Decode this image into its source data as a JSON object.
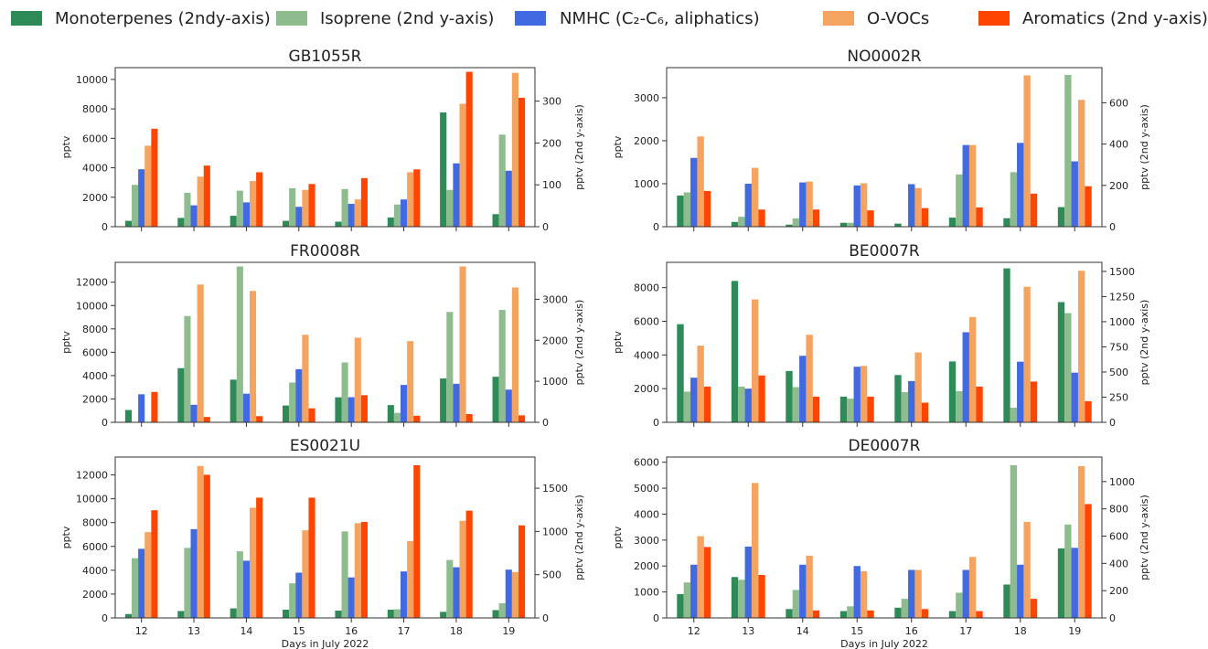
{
  "legend": {
    "placement": "top",
    "items": [
      {
        "label": "Monoterpenes (2ndy-axis)",
        "color": "#2e8b57"
      },
      {
        "label": "Isoprene (2nd y-axis)",
        "color": "#8fbc8f"
      },
      {
        "label": "NMHC (C₂-C₆, aliphatics)",
        "color": "#4169e1"
      },
      {
        "label": "O-VOCs",
        "color": "#f4a460"
      },
      {
        "label": "Aromatics (2nd y-axis)",
        "color": "#ff4500"
      }
    ]
  },
  "chart_data": [
    {
      "type": "bar",
      "title": "GB1055R",
      "categories": [
        "12",
        "13",
        "14",
        "15",
        "16",
        "17",
        "18",
        "19"
      ],
      "xlabel": "",
      "ylabel": "pptv",
      "y2label": "pptv (2nd y-axis)",
      "ylim": [
        0,
        10800
      ],
      "y2lim": [
        0,
        380
      ],
      "yticks": [
        0,
        2000,
        4000,
        6000,
        8000,
        10000
      ],
      "y2ticks": [
        0,
        100,
        200,
        300
      ],
      "show_xticklabels": false,
      "series": [
        {
          "name": "Monoterpenes (2ndy-axis)",
          "axis": "y2",
          "values": [
            14,
            21,
            26,
            14,
            12,
            22,
            273,
            30
          ]
        },
        {
          "name": "Isoprene (2nd y-axis)",
          "axis": "y2",
          "values": [
            100,
            81,
            86,
            92,
            90,
            53,
            88,
            220
          ]
        },
        {
          "name": "NMHC (C₂-C₆, aliphatics)",
          "axis": "y",
          "values": [
            3900,
            1450,
            1650,
            1350,
            1550,
            1850,
            4300,
            3800
          ]
        },
        {
          "name": "O-VOCs",
          "axis": "y",
          "values": [
            5500,
            3400,
            3100,
            2500,
            1850,
            3700,
            8350,
            10450
          ]
        },
        {
          "name": "Aromatics (2nd y-axis)",
          "axis": "y2",
          "values": [
            234,
            146,
            130,
            102,
            116,
            137,
            370,
            308
          ]
        }
      ]
    },
    {
      "type": "bar",
      "title": "NO0002R",
      "categories": [
        "12",
        "13",
        "14",
        "15",
        "16",
        "17",
        "18",
        "19"
      ],
      "xlabel": "",
      "ylabel": "pptv",
      "y2label": "pptv (2nd y-axis)",
      "ylim": [
        0,
        3700
      ],
      "y2lim": [
        0,
        770
      ],
      "yticks": [
        0,
        1000,
        2000,
        3000
      ],
      "y2ticks": [
        0,
        200,
        400,
        600
      ],
      "show_xticklabels": false,
      "series": [
        {
          "name": "Monoterpenes (2ndy-axis)",
          "axis": "y2",
          "values": [
            151,
            23,
            10,
            19,
            15,
            44,
            41,
            95
          ]
        },
        {
          "name": "Isoprene (2nd y-axis)",
          "axis": "y2",
          "values": [
            166,
            48,
            40,
            19,
            0,
            253,
            264,
            735
          ]
        },
        {
          "name": "NMHC (C₂-C₆, aliphatics)",
          "axis": "y",
          "values": [
            1600,
            1000,
            1030,
            960,
            990,
            1900,
            1950,
            1520
          ]
        },
        {
          "name": "O-VOCs",
          "axis": "y",
          "values": [
            2100,
            1370,
            1050,
            1010,
            900,
            1900,
            3520,
            2950
          ]
        },
        {
          "name": "Aromatics (2nd y-axis)",
          "axis": "y2",
          "values": [
            173,
            83,
            83,
            79,
            90,
            93,
            160,
            196
          ]
        }
      ]
    },
    {
      "type": "bar",
      "title": "FR0008R",
      "categories": [
        "12",
        "13",
        "14",
        "15",
        "16",
        "17",
        "18",
        "19"
      ],
      "xlabel": "",
      "ylabel": "pptv",
      "y2label": "pptv (2nd y-axis)",
      "ylim": [
        0,
        13700
      ],
      "y2lim": [
        0,
        3900
      ],
      "yticks": [
        0,
        2000,
        4000,
        6000,
        8000,
        10000,
        12000
      ],
      "y2ticks": [
        0,
        1000,
        2000,
        3000
      ],
      "show_xticklabels": false,
      "series": [
        {
          "name": "Monoterpenes (2ndy-axis)",
          "axis": "y2",
          "values": [
            300,
            1320,
            1040,
            410,
            610,
            420,
            1070,
            1110
          ]
        },
        {
          "name": "Isoprene (2nd y-axis)",
          "axis": "y2",
          "values": [
            0,
            2590,
            3800,
            970,
            1460,
            230,
            2690,
            2740
          ]
        },
        {
          "name": "NMHC (C₂-C₆, aliphatics)",
          "axis": "y",
          "values": [
            2400,
            1500,
            2450,
            4550,
            2150,
            3200,
            3300,
            2800
          ]
        },
        {
          "name": "O-VOCs",
          "axis": "y",
          "values": [
            0,
            11800,
            11250,
            7500,
            7250,
            6950,
            13350,
            11550
          ]
        },
        {
          "name": "Aromatics (2nd y-axis)",
          "axis": "y2",
          "values": [
            740,
            130,
            150,
            340,
            660,
            160,
            200,
            170
          ]
        }
      ]
    },
    {
      "type": "bar",
      "title": "BE0007R",
      "categories": [
        "12",
        "13",
        "14",
        "15",
        "16",
        "17",
        "18",
        "19"
      ],
      "xlabel": "",
      "ylabel": "pptv",
      "y2label": "pptv (2nd y-axis)",
      "ylim": [
        0,
        9500
      ],
      "y2lim": [
        0,
        1590
      ],
      "yticks": [
        0,
        2000,
        4000,
        6000,
        8000
      ],
      "y2ticks": [
        0,
        250,
        500,
        750,
        1000,
        1250,
        1500
      ],
      "show_xticklabels": false,
      "series": [
        {
          "name": "Monoterpenes (2ndy-axis)",
          "axis": "y2",
          "values": [
            975,
            1405,
            510,
            255,
            470,
            605,
            1530,
            1195
          ]
        },
        {
          "name": "Isoprene (2nd y-axis)",
          "axis": "y2",
          "values": [
            305,
            355,
            350,
            235,
            300,
            310,
            145,
            1085
          ]
        },
        {
          "name": "NMHC (C₂-C₆, aliphatics)",
          "axis": "y",
          "values": [
            2650,
            2000,
            3950,
            3300,
            2450,
            5350,
            3600,
            2950
          ]
        },
        {
          "name": "O-VOCs",
          "axis": "y",
          "values": [
            4550,
            7300,
            5200,
            3350,
            4150,
            6250,
            8050,
            9000
          ]
        },
        {
          "name": "Aromatics (2nd y-axis)",
          "axis": "y2",
          "values": [
            355,
            465,
            255,
            255,
            195,
            355,
            405,
            210
          ]
        }
      ]
    },
    {
      "type": "bar",
      "title": "ES0021U",
      "categories": [
        "12",
        "13",
        "14",
        "15",
        "16",
        "17",
        "18",
        "19"
      ],
      "xlabel": "Days in July 2022",
      "ylabel": "pptv",
      "y2label": "pptv (2nd y-axis)",
      "ylim": [
        0,
        13500
      ],
      "y2lim": [
        0,
        1860
      ],
      "yticks": [
        0,
        2000,
        4000,
        6000,
        8000,
        10000,
        12000
      ],
      "y2ticks": [
        0,
        500,
        1000,
        1500
      ],
      "show_xticklabels": true,
      "series": [
        {
          "name": "Monoterpenes (2ndy-axis)",
          "axis": "y2",
          "values": [
            45,
            80,
            110,
            95,
            85,
            95,
            70,
            90
          ]
        },
        {
          "name": "Isoprene (2nd y-axis)",
          "axis": "y2",
          "values": [
            690,
            810,
            770,
            400,
            1000,
            100,
            670,
            170
          ]
        },
        {
          "name": "NMHC (C₂-C₆, aliphatics)",
          "axis": "y",
          "values": [
            5800,
            7450,
            4800,
            3800,
            3400,
            3900,
            4250,
            4050
          ]
        },
        {
          "name": "O-VOCs",
          "axis": "y",
          "values": [
            7200,
            12750,
            9250,
            7350,
            7950,
            6450,
            8150,
            3850
          ]
        },
        {
          "name": "Aromatics (2nd y-axis)",
          "axis": "y2",
          "values": [
            1245,
            1655,
            1390,
            1390,
            1110,
            1765,
            1240,
            1070
          ]
        }
      ]
    },
    {
      "type": "bar",
      "title": "DE0007R",
      "categories": [
        "12",
        "13",
        "14",
        "15",
        "16",
        "17",
        "18",
        "19"
      ],
      "xlabel": "Days in July 2022",
      "ylabel": "pptv",
      "y2label": "pptv (2nd y-axis)",
      "ylim": [
        0,
        6200
      ],
      "y2lim": [
        0,
        1180
      ],
      "yticks": [
        0,
        1000,
        2000,
        3000,
        4000,
        5000,
        6000
      ],
      "y2ticks": [
        0,
        200,
        400,
        600,
        800,
        1000
      ],
      "show_xticklabels": true,
      "series": [
        {
          "name": "Monoterpenes (2ndy-axis)",
          "axis": "y2",
          "values": [
            175,
            300,
            65,
            50,
            75,
            50,
            245,
            510
          ]
        },
        {
          "name": "Isoprene (2nd y-axis)",
          "axis": "y2",
          "values": [
            260,
            280,
            205,
            85,
            140,
            185,
            1120,
            685
          ]
        },
        {
          "name": "NMHC (C₂-C₆, aliphatics)",
          "axis": "y",
          "values": [
            2050,
            2750,
            2050,
            2000,
            1850,
            1850,
            2050,
            2700
          ]
        },
        {
          "name": "O-VOCs",
          "axis": "y",
          "values": [
            3150,
            5200,
            2400,
            1800,
            1850,
            2350,
            3700,
            5850
          ]
        },
        {
          "name": "Aromatics (2nd y-axis)",
          "axis": "y2",
          "values": [
            520,
            315,
            55,
            55,
            65,
            50,
            140,
            835
          ]
        }
      ]
    }
  ]
}
